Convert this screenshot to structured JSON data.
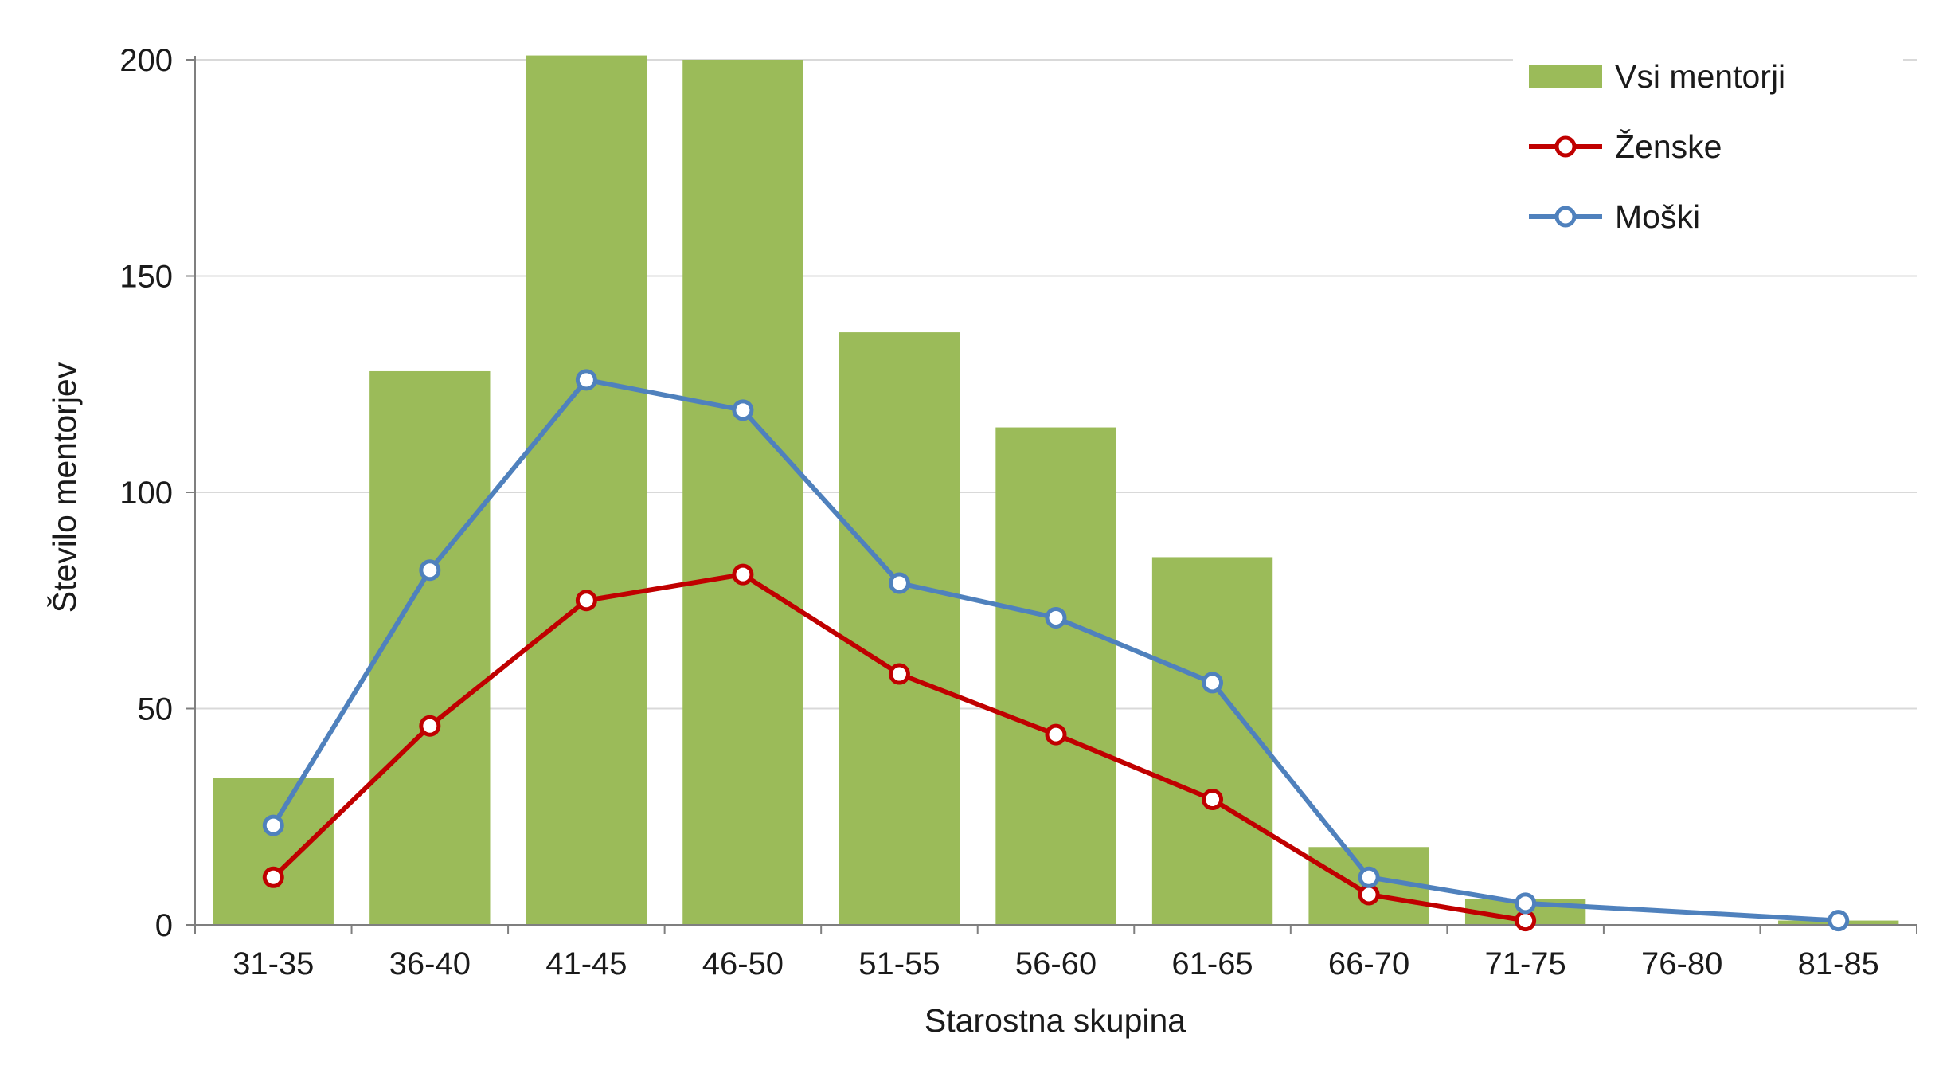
{
  "chart_data": {
    "type": "bar",
    "title": "",
    "xlabel": "Starostna skupina",
    "ylabel": "Število mentorjev",
    "categories": [
      "31-35",
      "36-40",
      "41-45",
      "46-50",
      "51-55",
      "56-60",
      "61-65",
      "66-70",
      "71-75",
      "76-80",
      "81-85"
    ],
    "ylim": [
      0,
      200
    ],
    "yticks": [
      0,
      50,
      100,
      150,
      200
    ],
    "grid": true,
    "legend_position": "top-right",
    "series": [
      {
        "name": "Vsi mentorji",
        "type": "bar",
        "color": "#9bbb59",
        "values": [
          34,
          128,
          201,
          200,
          137,
          115,
          85,
          18,
          6,
          0,
          1
        ]
      },
      {
        "name": "Ženske",
        "type": "line",
        "color": "#c00000",
        "values": [
          11,
          46,
          75,
          81,
          58,
          44,
          29,
          7,
          1,
          null,
          null
        ]
      },
      {
        "name": "Moški",
        "type": "line",
        "color": "#4f81bd",
        "values": [
          23,
          82,
          126,
          119,
          79,
          71,
          56,
          11,
          5,
          null,
          1
        ]
      }
    ]
  }
}
